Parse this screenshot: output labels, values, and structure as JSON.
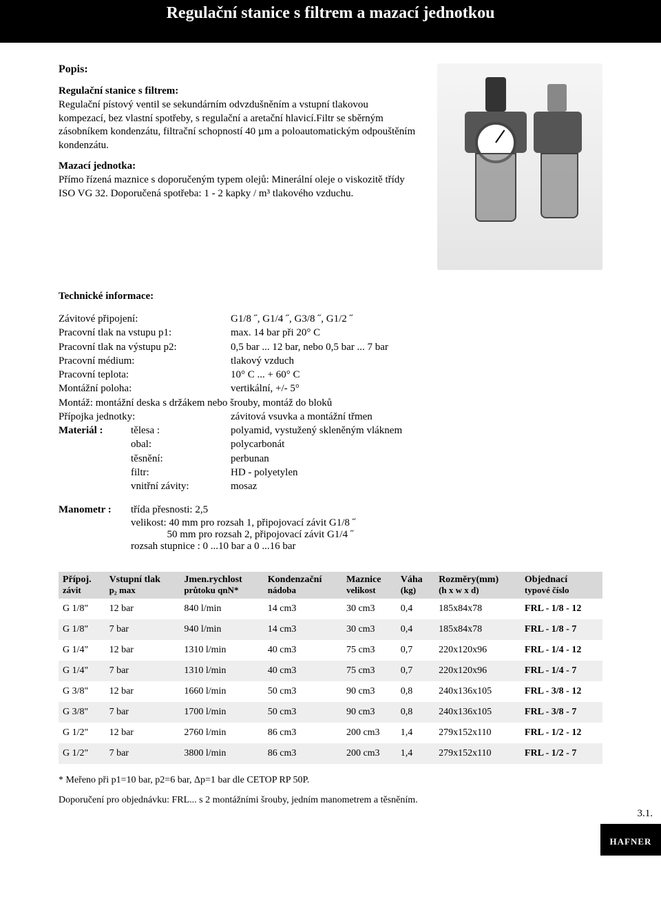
{
  "header": {
    "title": "Regulační stanice s filtrem a mazací jednotkou"
  },
  "popis": {
    "heading": "Popis:",
    "sec1_title": "Regulační stanice s filtrem:",
    "sec1_text": "Regulační pístový ventil se sekundárním odvzdušněním a vstupní tlakovou kompezací, bez vlastní spotřeby, s regulační a aretační hlavicí.Filtr se sběrným zásobníkem kondenzátu, filtrační schopností 40 µm a poloautomatickým odpouštěním kondenzátu.",
    "sec2_title": "Mazací jednotka:",
    "sec2_text": "Přímo řízená maznice s doporučeným typem olejů: Minerální oleje o viskozitě třídy ISO VG 32. Doporučená spotřeba: 1 - 2 kapky / m³ tlakového vzduchu."
  },
  "tech": {
    "heading": "Technické informace:",
    "rows": [
      {
        "k": "Závitové připojení:",
        "v": "G1/8 ˝, G1/4 ˝, G3/8 ˝, G1/2 ˝"
      },
      {
        "k": "Pracovní tlak na vstupu   p1:",
        "v": "max. 14 bar při 20° C"
      },
      {
        "k": "Pracovní tlak na výstupu p2:",
        "v": "0,5 bar ... 12 bar, nebo  0,5 bar ... 7 bar"
      },
      {
        "k": "Pracovní médium:",
        "v": "tlakový vzduch"
      },
      {
        "k": "Pracovní teplota:",
        "v": "10° C ... + 60° C"
      },
      {
        "k": "Montážní poloha:",
        "v": " vertikální, +/- 5°"
      }
    ],
    "mount_line": "Montáž: montážní deska s držákem nebo šrouby, montáž do bloků",
    "pripojka": {
      "k": "Přípojka jednotky:",
      "v": "závitová vsuvka a montážní třmen"
    },
    "material_label": "Materiál :",
    "material": [
      {
        "k": "tělesa :",
        "v": "polyamid, vystužený skleněným vláknem"
      },
      {
        "k": "obal:",
        "v": "polycarbonát"
      },
      {
        "k": "těsnění:",
        "v": "perbunan"
      },
      {
        "k": "filtr:",
        "v": "HD - polyetylen"
      },
      {
        "k": "vnitřní závity:",
        "v": "mosaz"
      }
    ],
    "mano_label": "Manometr :",
    "mano_lines": [
      "třída přesnosti: 2,5",
      "velikost:  40 mm pro rozsah 1, připojovací závit G1/8 ˝",
      "              50 mm pro rozsah 2, připojovací závit G1/4 ˝",
      "rozsah stupnice : 0 ...10 bar a  0 ...16 bar"
    ]
  },
  "table": {
    "columns": [
      {
        "l1": "Přípoj.",
        "l2": "závit"
      },
      {
        "l1": "Vstupní tlak",
        "l2": "p₂ max"
      },
      {
        "l1": "Jmen.rychlost",
        "l2": "průtoku qnN*"
      },
      {
        "l1": "Kondenzační",
        "l2": "nádoba"
      },
      {
        "l1": "Maznice",
        "l2": "velikost"
      },
      {
        "l1": "Váha",
        "l2": "(kg)"
      },
      {
        "l1": "Rozměry(mm)",
        "l2": "(h x w x d)"
      },
      {
        "l1": "Objednací",
        "l2": "typové číslo"
      }
    ],
    "rows": [
      [
        "G 1/8\"",
        "12 bar",
        "840 l/min",
        "14 cm3",
        "30 cm3",
        "0,4",
        "185x84x78",
        "FRL - 1/8 - 12"
      ],
      [
        "G 1/8\"",
        "7 bar",
        "940 l/min",
        "14 cm3",
        "30 cm3",
        "0,4",
        "185x84x78",
        "FRL - 1/8 -  7"
      ],
      [
        "G 1/4\"",
        "12 bar",
        "1310 l/min",
        "40 cm3",
        "75 cm3",
        "0,7",
        "220x120x96",
        "FRL - 1/4 - 12"
      ],
      [
        "G 1/4\"",
        "7 bar",
        "1310 l/min",
        "40 cm3",
        "75 cm3",
        "0,7",
        "220x120x96",
        "FRL - 1/4 - 7"
      ],
      [
        "G 3/8\"",
        "12 bar",
        "1660 l/min",
        "50 cm3",
        "90 cm3",
        "0,8",
        "240x136x105",
        "FRL - 3/8 - 12"
      ],
      [
        "G 3/8\"",
        "7 bar",
        "1700 l/min",
        "50 cm3",
        "90 cm3",
        "0,8",
        "240x136x105",
        "FRL - 3/8 - 7"
      ],
      [
        "G 1/2\"",
        "12 bar",
        "2760 l/min",
        "86 cm3",
        "200 cm3",
        "1,4",
        "279x152x110",
        "FRL - 1/2 - 12"
      ],
      [
        "G 1/2\"",
        "7 bar",
        "3800 l/min",
        "86 cm3",
        "200 cm3",
        "1,4",
        "279x152x110",
        "FRL - 1/2 - 7"
      ]
    ]
  },
  "footnotes": [
    "* Meřeno při p1=10 bar, p2=6 bar,  Δp=1 bar dle CETOP RP 50P.",
    "Doporučení pro objednávku: FRL...  s  2 montážními šrouby, jedním manometrem a těsněním."
  ],
  "footer": {
    "page_no": "3.1.",
    "brand": "HAFNER"
  },
  "colors": {
    "header_bg": "#000000",
    "thead_bg": "#d8d8d8",
    "row_alt_bg": "#eeeeee"
  }
}
